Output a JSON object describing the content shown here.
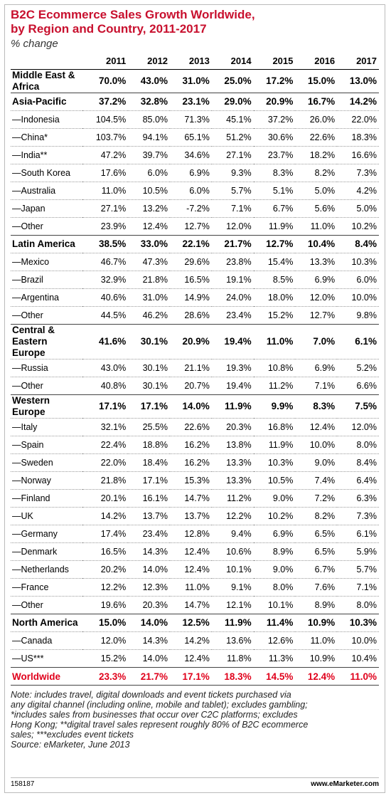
{
  "title": [
    "B2C Ecommerce Sales Growth Worldwide,",
    "by Region and Country, 2011-2017"
  ],
  "subtitle": "% change",
  "table": {
    "columns": [
      "2011",
      "2012",
      "2013",
      "2014",
      "2015",
      "2016",
      "2017"
    ],
    "rows": [
      {
        "label": "Middle East & Africa",
        "values": [
          "70.0%",
          "43.0%",
          "31.0%",
          "25.0%",
          "17.2%",
          "15.0%",
          "13.0%"
        ]
      },
      {
        "label": "Asia-Pacific",
        "values": [
          "37.2%",
          "32.8%",
          "23.1%",
          "29.0%",
          "20.9%",
          "16.7%",
          "14.2%"
        ]
      },
      {
        "label": "—Indonesia",
        "values": [
          "104.5%",
          "85.0%",
          "71.3%",
          "45.1%",
          "37.2%",
          "26.0%",
          "22.0%"
        ]
      },
      {
        "label": "—China*",
        "values": [
          "103.7%",
          "94.1%",
          "65.1%",
          "51.2%",
          "30.6%",
          "22.6%",
          "18.3%"
        ]
      },
      {
        "label": "—India**",
        "values": [
          "47.2%",
          "39.7%",
          "34.6%",
          "27.1%",
          "23.7%",
          "18.2%",
          "16.6%"
        ]
      },
      {
        "label": "—South Korea",
        "values": [
          "17.6%",
          "6.0%",
          "6.9%",
          "9.3%",
          "8.3%",
          "8.2%",
          "7.3%"
        ]
      },
      {
        "label": "—Australia",
        "values": [
          "11.0%",
          "10.5%",
          "6.0%",
          "5.7%",
          "5.1%",
          "5.0%",
          "4.2%"
        ]
      },
      {
        "label": "—Japan",
        "values": [
          "27.1%",
          "13.2%",
          "-7.2%",
          "7.1%",
          "6.7%",
          "5.6%",
          "5.0%"
        ]
      },
      {
        "label": "—Other",
        "values": [
          "23.9%",
          "12.4%",
          "12.7%",
          "12.0%",
          "11.9%",
          "11.0%",
          "10.2%"
        ]
      },
      {
        "label": "Latin America",
        "values": [
          "38.5%",
          "33.0%",
          "22.1%",
          "21.7%",
          "12.7%",
          "10.4%",
          "8.4%"
        ]
      },
      {
        "label": "—Mexico",
        "values": [
          "46.7%",
          "47.3%",
          "29.6%",
          "23.8%",
          "15.4%",
          "13.3%",
          "10.3%"
        ]
      },
      {
        "label": "—Brazil",
        "values": [
          "32.9%",
          "21.8%",
          "16.5%",
          "19.1%",
          "8.5%",
          "6.9%",
          "6.0%"
        ]
      },
      {
        "label": "—Argentina",
        "values": [
          "40.6%",
          "31.0%",
          "14.9%",
          "24.0%",
          "18.0%",
          "12.0%",
          "10.0%"
        ]
      },
      {
        "label": "—Other",
        "values": [
          "44.5%",
          "46.2%",
          "28.6%",
          "23.4%",
          "15.2%",
          "12.7%",
          "9.8%"
        ]
      },
      {
        "label": "Central & Eastern Europe",
        "values": [
          "41.6%",
          "30.1%",
          "20.9%",
          "19.4%",
          "11.0%",
          "7.0%",
          "6.1%"
        ]
      },
      {
        "label": "—Russia",
        "values": [
          "43.0%",
          "30.1%",
          "21.1%",
          "19.3%",
          "10.8%",
          "6.9%",
          "5.2%"
        ]
      },
      {
        "label": "—Other",
        "values": [
          "40.8%",
          "30.1%",
          "20.7%",
          "19.4%",
          "11.2%",
          "7.1%",
          "6.6%"
        ]
      },
      {
        "label": "Western Europe",
        "values": [
          "17.1%",
          "17.1%",
          "14.0%",
          "11.9%",
          "9.9%",
          "8.3%",
          "7.5%"
        ]
      },
      {
        "label": "—Italy",
        "values": [
          "32.1%",
          "25.5%",
          "22.6%",
          "20.3%",
          "16.8%",
          "12.4%",
          "12.0%"
        ]
      },
      {
        "label": "—Spain",
        "values": [
          "22.4%",
          "18.8%",
          "16.2%",
          "13.8%",
          "11.9%",
          "10.0%",
          "8.0%"
        ]
      },
      {
        "label": "—Sweden",
        "values": [
          "22.0%",
          "18.4%",
          "16.2%",
          "13.3%",
          "10.3%",
          "9.0%",
          "8.4%"
        ]
      },
      {
        "label": "—Norway",
        "values": [
          "21.8%",
          "17.1%",
          "15.3%",
          "13.3%",
          "10.5%",
          "7.4%",
          "6.4%"
        ]
      },
      {
        "label": "—Finland",
        "values": [
          "20.1%",
          "16.1%",
          "14.7%",
          "11.2%",
          "9.0%",
          "7.2%",
          "6.3%"
        ]
      },
      {
        "label": "—UK",
        "values": [
          "14.2%",
          "13.7%",
          "13.7%",
          "12.2%",
          "10.2%",
          "8.2%",
          "7.3%"
        ]
      },
      {
        "label": "—Germany",
        "values": [
          "17.4%",
          "23.4%",
          "12.8%",
          "9.4%",
          "6.9%",
          "6.5%",
          "6.1%"
        ]
      },
      {
        "label": "—Denmark",
        "values": [
          "16.5%",
          "14.3%",
          "12.4%",
          "10.6%",
          "8.9%",
          "6.5%",
          "5.9%"
        ]
      },
      {
        "label": "—Netherlands",
        "values": [
          "20.2%",
          "14.0%",
          "12.4%",
          "10.1%",
          "9.0%",
          "6.7%",
          "5.7%"
        ]
      },
      {
        "label": "—France",
        "values": [
          "12.2%",
          "12.3%",
          "11.0%",
          "9.1%",
          "8.0%",
          "7.6%",
          "7.1%"
        ]
      },
      {
        "label": "—Other",
        "values": [
          "19.6%",
          "20.3%",
          "14.7%",
          "12.1%",
          "10.1%",
          "8.9%",
          "8.0%"
        ]
      },
      {
        "label": "North America",
        "values": [
          "15.0%",
          "14.0%",
          "12.5%",
          "11.9%",
          "11.4%",
          "10.9%",
          "10.3%"
        ]
      },
      {
        "label": "—Canada",
        "values": [
          "12.0%",
          "14.3%",
          "14.2%",
          "13.6%",
          "12.6%",
          "11.0%",
          "10.0%"
        ]
      },
      {
        "label": "—US***",
        "values": [
          "15.2%",
          "14.0%",
          "12.4%",
          "11.8%",
          "11.3%",
          "10.9%",
          "10.4%"
        ]
      }
    ],
    "total": {
      "label": "Worldwide",
      "values": [
        "23.3%",
        "21.7%",
        "17.1%",
        "18.3%",
        "14.5%",
        "12.4%",
        "11.0%"
      ]
    }
  },
  "notes": [
    "Note: includes travel, digital downloads and event tickets purchased via",
    "any digital channel (including online, mobile and tablet); excludes gambling;",
    "*includes sales from businesses that occur over C2C platforms; excludes",
    "Hong Kong; **digital travel sales represent roughly 80% of B2C ecommerce",
    "sales; ***excludes event tickets",
    "Source: eMarketer, June 2013"
  ],
  "footer": {
    "id": "158187",
    "site": "www.eMarketer.com"
  }
}
